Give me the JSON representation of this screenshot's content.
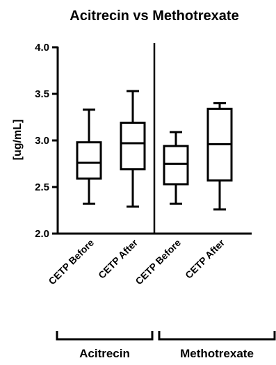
{
  "chart_data": {
    "type": "box",
    "title": "Acitrecin vs Methotrexate",
    "ylabel": "[ug/mL]",
    "xlabel": "",
    "ylim": [
      2.0,
      4.0
    ],
    "yticks": [
      "2.0",
      "2.5",
      "3.0",
      "3.5",
      "4.0"
    ],
    "grid": false,
    "categories": [
      "CETP Before",
      "CETP After",
      "CETP Before",
      "CETP After"
    ],
    "groups": [
      {
        "label": "Acitrecin",
        "categories": [
          0,
          1
        ]
      },
      {
        "label": "Methotrexate",
        "categories": [
          2,
          3
        ]
      }
    ],
    "boxes": [
      {
        "min": 2.32,
        "q1": 2.59,
        "median": 2.76,
        "q3": 2.98,
        "max": 3.33
      },
      {
        "min": 2.29,
        "q1": 2.69,
        "median": 2.97,
        "q3": 3.19,
        "max": 3.53
      },
      {
        "min": 2.32,
        "q1": 2.53,
        "median": 2.75,
        "q3": 2.94,
        "max": 3.09
      },
      {
        "min": 2.26,
        "q1": 2.57,
        "median": 2.96,
        "q3": 3.34,
        "max": 3.4
      }
    ]
  }
}
